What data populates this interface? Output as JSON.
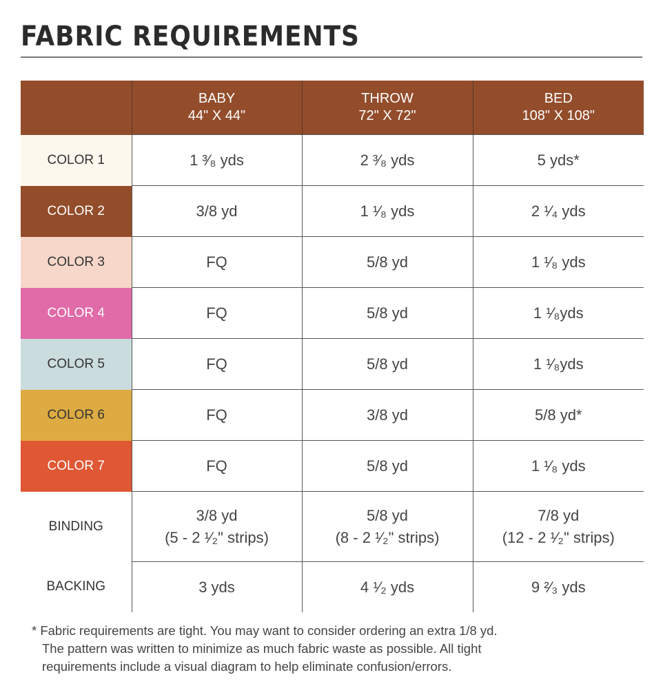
{
  "title": "FABRIC REQUIREMENTS",
  "columns": [
    {
      "name": "BABY",
      "size": "44\" X 44\""
    },
    {
      "name": "THROW",
      "size": "72\" X 72\""
    },
    {
      "name": "BED",
      "size": "108\" X 108\""
    }
  ],
  "rows": [
    {
      "label": "COLOR 1",
      "bg": "#fdf8ee",
      "fg": "#333333",
      "values": [
        "1 ³⁄₈ yds",
        "2 ³⁄₈ yds",
        "5 yds*"
      ]
    },
    {
      "label": "COLOR 2",
      "bg": "#934d2b",
      "fg": "#ffffff",
      "values": [
        "3/8 yd",
        "1 ¹⁄₈ yds",
        "2 ¹⁄₄ yds"
      ]
    },
    {
      "label": "COLOR 3",
      "bg": "#f7d7c9",
      "fg": "#333333",
      "values": [
        "FQ",
        "5/8 yd",
        "1 ¹⁄₈ yds"
      ]
    },
    {
      "label": "COLOR 4",
      "bg": "#e16aa8",
      "fg": "#ffffff",
      "values": [
        "FQ",
        "5/8 yd",
        "1 ¹⁄₈yds"
      ]
    },
    {
      "label": "COLOR 5",
      "bg": "#cbdcde",
      "fg": "#333333",
      "values": [
        "FQ",
        "5/8 yd",
        "1 ¹⁄₈yds"
      ]
    },
    {
      "label": "COLOR 6",
      "bg": "#ddab41",
      "fg": "#333333",
      "values": [
        "FQ",
        "3/8 yd",
        "5/8 yd*"
      ]
    },
    {
      "label": "COLOR 7",
      "bg": "#df5733",
      "fg": "#ffffff",
      "values": [
        "FQ",
        "5/8 yd",
        "1 ¹⁄₈ yds"
      ]
    },
    {
      "label": "BINDING",
      "bg": "#ffffff",
      "fg": "#333333",
      "values": [
        "3/8 yd",
        "5/8 yd",
        "7/8 yd"
      ],
      "sub": [
        "(5 - 2 ¹⁄₂\" strips)",
        "(8 - 2 ¹⁄₂\" strips)",
        "(12 - 2 ¹⁄₂\" strips)"
      ]
    },
    {
      "label": "BACKING",
      "bg": "#ffffff",
      "fg": "#333333",
      "values": [
        "3 yds",
        "4 ¹⁄₂  yds",
        "9 ²⁄₃  yds"
      ]
    }
  ],
  "note": {
    "star": "*",
    "lines": [
      "Fabric requirements are tight. You may want to consider ordering an extra 1/8 yd.",
      "The pattern was written to minimize as much fabric waste as possible. All tight",
      "requirements include a visual diagram to help eliminate confusion/errors."
    ]
  }
}
